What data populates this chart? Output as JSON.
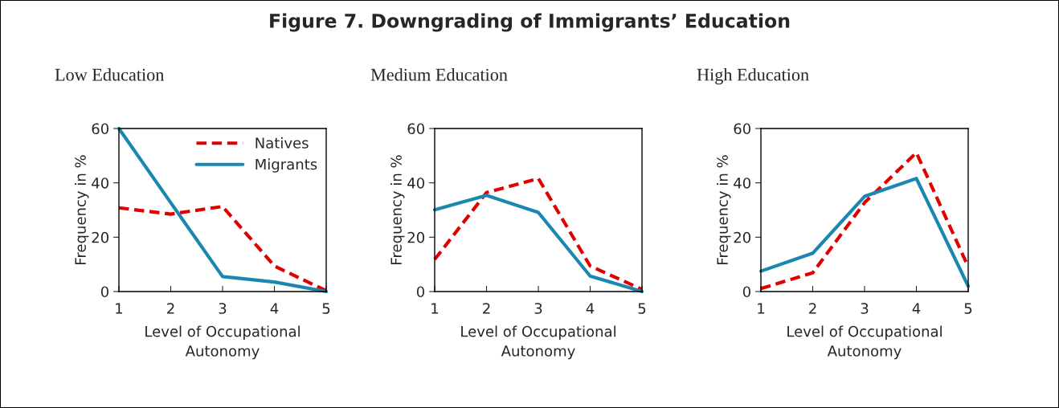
{
  "chart_data": [
    {
      "type": "line",
      "title": "Low Education",
      "xlabel": "Level of Occupational\nAutonomy",
      "ylabel": "Frequency in %",
      "annotations": [
        "Figure 7. Downgrading of Immigrants’ Education"
      ],
      "x": [
        1,
        2,
        3,
        4,
        5
      ],
      "xlim": [
        1,
        5
      ],
      "xticks": [
        1,
        2,
        3,
        4,
        5
      ],
      "ylim": [
        0,
        60
      ],
      "yticks": [
        0,
        20,
        40,
        60
      ],
      "grid": false,
      "legend": "top right",
      "series": [
        {
          "name": "Natives",
          "color": "#e00000",
          "line_style": "dashed",
          "values": [
            30.8,
            28.5,
            31.3,
            9.4,
            0.3
          ]
        },
        {
          "name": "Migrants",
          "color": "#1a87b0",
          "line_style": "solid",
          "values": [
            60,
            32.7,
            5.5,
            3.5,
            0
          ]
        }
      ]
    },
    {
      "type": "line",
      "title": "Medium Education",
      "xlabel": "Level of Occupational\nAutonomy",
      "ylabel": "Frequency in %",
      "x": [
        1,
        2,
        3,
        4,
        5
      ],
      "xlim": [
        1,
        5
      ],
      "xticks": [
        1,
        2,
        3,
        4,
        5
      ],
      "ylim": [
        0,
        60
      ],
      "yticks": [
        0,
        20,
        40,
        60
      ],
      "grid": false,
      "legend": false,
      "series": [
        {
          "color": "#e00000",
          "line_style": "dashed",
          "values": [
            11.8,
            36.4,
            41.6,
            9.4,
            0.8
          ]
        },
        {
          "color": "#1a87b0",
          "line_style": "solid",
          "values": [
            30.1,
            35.4,
            29.1,
            5.7,
            0
          ]
        }
      ]
    },
    {
      "type": "line",
      "title": "High Education",
      "xlabel": "Level of Occupational\nAutonomy",
      "ylabel": "Frequency in %",
      "x": [
        1,
        2,
        3,
        4,
        5
      ],
      "xlim": [
        1,
        5
      ],
      "xticks": [
        1,
        2,
        3,
        4,
        5
      ],
      "ylim": [
        0,
        60
      ],
      "yticks": [
        0,
        20,
        40,
        60
      ],
      "grid": false,
      "legend": false,
      "series": [
        {
          "color": "#e00000",
          "line_style": "dashed",
          "values": [
            1.1,
            6.9,
            32.7,
            51.1,
            9.1
          ]
        },
        {
          "color": "#1a87b0",
          "line_style": "solid",
          "values": [
            7.5,
            14.1,
            35,
            41.6,
            2
          ]
        }
      ]
    }
  ]
}
